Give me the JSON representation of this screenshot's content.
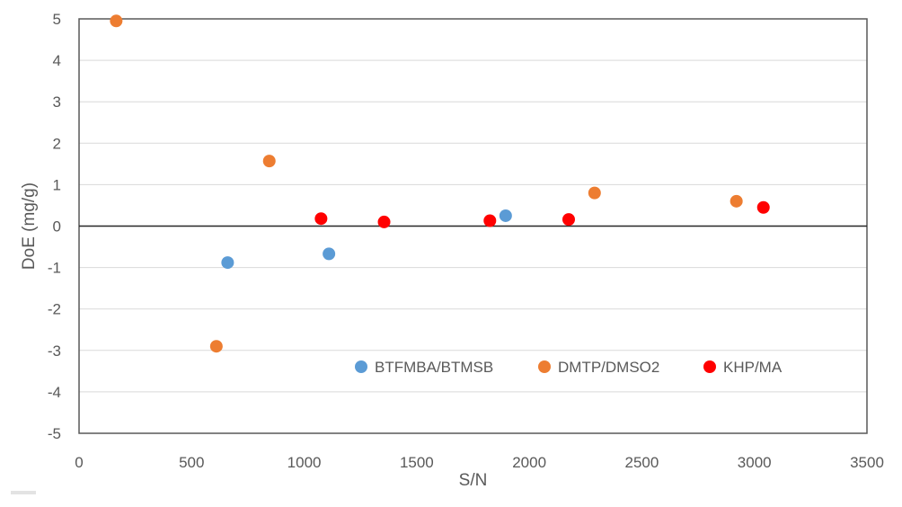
{
  "chart_data": {
    "type": "scatter",
    "title": "",
    "xlabel": "S/N",
    "ylabel": "DoE (mg/g)",
    "xlim": [
      0,
      3500
    ],
    "ylim": [
      -5,
      5
    ],
    "x_ticks": [
      "0",
      "500",
      "1000",
      "1500",
      "2000",
      "2500",
      "3000",
      "3500"
    ],
    "y_ticks": [
      "5",
      "4",
      "3",
      "2",
      "1",
      "0",
      "-1",
      "-2",
      "-3",
      "-4",
      "-5"
    ],
    "x_tick_values": [
      0,
      500,
      1000,
      1500,
      2000,
      2500,
      3000,
      3500
    ],
    "y_tick_values": [
      5,
      4,
      3,
      2,
      1,
      0,
      -1,
      -2,
      -3,
      -4,
      -5
    ],
    "grid": "horizontal",
    "legend_position": "bottom-right",
    "series": [
      {
        "name": "BTFMBA/BTMSB",
        "color": "#5b9bd5",
        "points": [
          {
            "x": 660,
            "y": -0.88
          },
          {
            "x": 1110,
            "y": -0.67
          },
          {
            "x": 1895,
            "y": 0.25
          }
        ]
      },
      {
        "name": "DMTP/DMSO2",
        "color": "#ed7d31",
        "points": [
          {
            "x": 165,
            "y": 4.95
          },
          {
            "x": 610,
            "y": -2.9
          },
          {
            "x": 845,
            "y": 1.57
          },
          {
            "x": 2290,
            "y": 0.8
          },
          {
            "x": 2920,
            "y": 0.6
          }
        ]
      },
      {
        "name": "KHP/MA",
        "color": "#ff0000",
        "points": [
          {
            "x": 1075,
            "y": 0.18
          },
          {
            "x": 1355,
            "y": 0.1
          },
          {
            "x": 1825,
            "y": 0.13
          },
          {
            "x": 2175,
            "y": 0.16
          },
          {
            "x": 3040,
            "y": 0.45
          }
        ]
      }
    ]
  }
}
